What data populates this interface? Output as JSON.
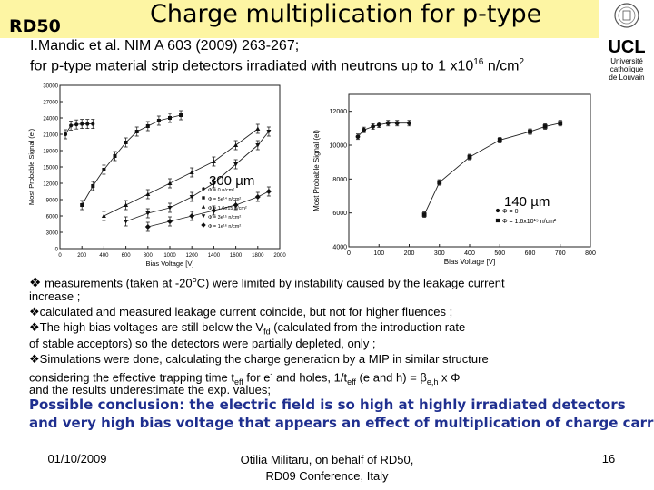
{
  "header": {
    "logo_text": "RD50",
    "title": "Charge multiplication for p-type",
    "ref_line1": "I.Mandic et al. NIM  A 603 (2009) 263-267;",
    "ref_line2_prefix": "for p-type material strip detectors irradiated with neutrons up to 1 x10",
    "ref_line2_exp": "16",
    "ref_line2_suffix": " n/cm",
    "ref_line2_sup": "2"
  },
  "ucl_logo": {
    "name": "UCL",
    "line1": "Université",
    "line2": "catholique",
    "line3": "de Louvain"
  },
  "colors": {
    "title_bar": "#fdf5a3",
    "conclusion": "#1f2f8f"
  },
  "chart_data": [
    {
      "type": "line",
      "annotation": "300 µm",
      "xlabel": "Bias Voltage [V]",
      "ylabel": "Most Probable Signal (el)",
      "xlim": [
        0,
        2000
      ],
      "ylim": [
        0,
        30000
      ],
      "xticks": [
        "0",
        "200",
        "400",
        "600",
        "800",
        "1000",
        "1200",
        "1400",
        "1600",
        "1800",
        "2000"
      ],
      "yticks": [
        "0",
        "3000",
        "6000",
        "9000",
        "12000",
        "15000",
        "18000",
        "21000",
        "24000",
        "27000",
        "30000"
      ],
      "legend_position": "lower-right",
      "series": [
        {
          "name": "Φ = 0 n/cm²",
          "marker": "circle",
          "x": [
            50,
            100,
            150,
            200,
            250,
            300
          ],
          "y": [
            21000,
            22600,
            22800,
            22900,
            22900,
            22900
          ]
        },
        {
          "name": "Φ = 5e¹⁴ n/cm²",
          "marker": "square",
          "x": [
            200,
            300,
            400,
            500,
            600,
            700,
            800,
            900,
            1000,
            1100
          ],
          "y": [
            8000,
            11500,
            14500,
            17000,
            19500,
            21500,
            22500,
            23500,
            24000,
            24500
          ]
        },
        {
          "name": "Φ = 1.6e15 n/cm²",
          "marker": "triangle-up",
          "x": [
            400,
            600,
            800,
            1000,
            1200,
            1400,
            1600,
            1800
          ],
          "y": [
            6000,
            8000,
            10000,
            12000,
            14000,
            16000,
            19000,
            22000
          ]
        },
        {
          "name": "Φ = 3e¹⁵ n/cm²",
          "marker": "triangle-down",
          "x": [
            600,
            800,
            1000,
            1200,
            1400,
            1600,
            1800,
            1900
          ],
          "y": [
            5000,
            6500,
            7500,
            9500,
            12000,
            15500,
            19000,
            21500
          ]
        },
        {
          "name": "Φ = 1e¹⁶ n/cm²",
          "marker": "diamond",
          "x": [
            800,
            1000,
            1200,
            1400,
            1600,
            1800,
            1900
          ],
          "y": [
            4000,
            5000,
            6000,
            7000,
            8000,
            9500,
            10500
          ]
        }
      ]
    },
    {
      "type": "line",
      "annotation": "140 µm",
      "xlabel": "Bias Voltage [V]",
      "ylabel": "Most Probable Signal (el)",
      "xlim": [
        0,
        800
      ],
      "ylim": [
        4000,
        13000
      ],
      "xticks": [
        "0",
        "100",
        "200",
        "300",
        "400",
        "500",
        "600",
        "700",
        "800"
      ],
      "yticks": [
        "4000",
        "6000",
        "8000",
        "10000",
        "12000"
      ],
      "legend_position": "lower-right",
      "series": [
        {
          "name": "Φ = 0",
          "marker": "circle",
          "x": [
            30,
            50,
            80,
            100,
            130,
            160,
            200
          ],
          "y": [
            10500,
            10900,
            11100,
            11200,
            11300,
            11300,
            11300
          ]
        },
        {
          "name": "Φ = 1.6x10¹⁵ n/cm²",
          "marker": "square",
          "x": [
            250,
            300,
            400,
            500,
            600,
            650,
            700
          ],
          "y": [
            5900,
            7800,
            9300,
            10300,
            10800,
            11100,
            11300
          ]
        }
      ]
    }
  ],
  "bullets": {
    "b1_text": " measurements (taken at -20",
    "b1_sup": "o",
    "b1_text2": "C)  were limited by instability caused by the leakage current",
    "b1_line2": "increase ;",
    "b2": "calculated and measured leakage current coincide, but not for higher fluences ;",
    "b3_text": "The high bias voltages are still below the V",
    "b3_sub": "fd",
    "b3_text2": " (calculated from the introduction rate",
    "b3_line2": "of stable acceptors) so the detectors were partially depleted, only  ;",
    "b4": "Simulations were done, calculating the charge generation by a MIP in similar structure",
    "b4_line2_a": "considering the effective trapping time t",
    "b4_line2_sub": "eff",
    "b4_line2_b": " for e",
    "b4_line2_sup": "-",
    "b4_line2_c": " and holes, 1/t",
    "b4_line2_sub2": "eff",
    "b4_line2_d": " (e and h) = β",
    "b4_line2_sub3": "e,h",
    "b4_line2_e": " x Φ",
    "b4_line3": "and the results underestimate the exp. values;"
  },
  "conclusion": {
    "line1": "Possible conclusion: the electric field is so high at highly irradiated detectors",
    "line2": "and very high bias voltage that appears an effect of multiplication of charge carriers"
  },
  "footer": {
    "date": "01/10/2009",
    "author_line1": "Otilia Militaru, on behalf of RD50,",
    "author_line2": "RD09 Conference, Italy",
    "page": "16"
  }
}
